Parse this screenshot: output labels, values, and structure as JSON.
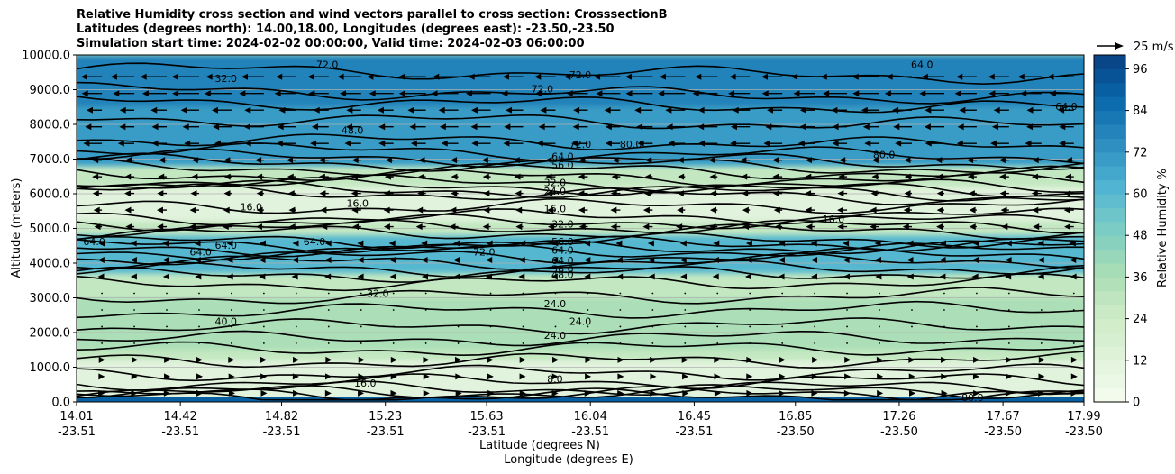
{
  "chart_data": {
    "type": "heatmap",
    "title_lines": [
      "Relative Humidity cross section and wind vectors parallel to cross section: CrosssectionB",
      "Latitudes (degrees north): 14.00,18.00, Longitudes (degrees east): -23.50,-23.50",
      "Simulation start time: 2024-02-02 00:00:00, Valid time: 2024-02-03 06:00:00"
    ],
    "ylabel": "Altitude (meters)",
    "xlabel_lines": [
      "Latitude (degrees N)",
      "Longitude (degrees E)"
    ],
    "y_ticks": [
      "0.0",
      "1000.0",
      "2000.0",
      "3000.0",
      "4000.0",
      "5000.0",
      "6000.0",
      "7000.0",
      "8000.0",
      "9000.0",
      "10000.0"
    ],
    "ylim": [
      0,
      10000
    ],
    "x_ticks": [
      {
        "lat": "14.01",
        "lon": "-23.51"
      },
      {
        "lat": "14.42",
        "lon": "-23.51"
      },
      {
        "lat": "14.82",
        "lon": "-23.51"
      },
      {
        "lat": "15.23",
        "lon": "-23.51"
      },
      {
        "lat": "15.63",
        "lon": "-23.51"
      },
      {
        "lat": "16.04",
        "lon": "-23.51"
      },
      {
        "lat": "16.45",
        "lon": "-23.51"
      },
      {
        "lat": "16.85",
        "lon": "-23.50"
      },
      {
        "lat": "17.26",
        "lon": "-23.50"
      },
      {
        "lat": "17.67",
        "lon": "-23.50"
      },
      {
        "lat": "17.99",
        "lon": "-23.50"
      }
    ],
    "xlim": [
      14.01,
      17.99
    ],
    "colorbar": {
      "label": "Relative Humidity %",
      "ticks": [
        "0",
        "12",
        "24",
        "36",
        "48",
        "60",
        "72",
        "84",
        "96"
      ],
      "range": [
        0,
        100
      ],
      "levels": 25,
      "colormap": "GnBu"
    },
    "quiver_key": "25 m/s",
    "grid": "horizontal",
    "humidity_layers": [
      {
        "altitude_range": [
          8500,
          10000
        ],
        "rh_percent": 78
      },
      {
        "altitude_range": [
          6800,
          8500
        ],
        "rh_percent": 70
      },
      {
        "altitude_range": [
          5200,
          6200
        ],
        "rh_percent": 12
      },
      {
        "altitude_range": [
          3700,
          4800
        ],
        "rh_percent": 60
      },
      {
        "altitude_range": [
          1500,
          3000
        ],
        "rh_percent": 36
      },
      {
        "altitude_range": [
          0,
          1200
        ],
        "rh_percent": 12
      }
    ],
    "contour_labels": [
      {
        "text": "72.0",
        "lat": 15.0,
        "alt": 9700
      },
      {
        "text": "72.0",
        "lat": 15.85,
        "alt": 9000
      },
      {
        "text": "72.0",
        "lat": 16.0,
        "alt": 9400
      },
      {
        "text": "64.0",
        "lat": 17.35,
        "alt": 9700
      },
      {
        "text": "64.0",
        "lat": 17.92,
        "alt": 8500
      },
      {
        "text": "32.0",
        "lat": 14.6,
        "alt": 9300
      },
      {
        "text": "48.0",
        "lat": 15.1,
        "alt": 7800
      },
      {
        "text": "72.0",
        "lat": 16.0,
        "alt": 7400
      },
      {
        "text": "64.0",
        "lat": 15.93,
        "alt": 7050
      },
      {
        "text": "56.0",
        "lat": 15.93,
        "alt": 6800
      },
      {
        "text": "80.0",
        "lat": 16.2,
        "alt": 7400
      },
      {
        "text": "80.0",
        "lat": 17.2,
        "alt": 7100
      },
      {
        "text": "32.0",
        "lat": 15.9,
        "alt": 6300
      },
      {
        "text": "24.0",
        "lat": 15.9,
        "alt": 6050
      },
      {
        "text": "16.0",
        "lat": 15.12,
        "alt": 5700
      },
      {
        "text": "16.0",
        "lat": 14.7,
        "alt": 5600
      },
      {
        "text": "16.0",
        "lat": 15.9,
        "alt": 5550
      },
      {
        "text": "16.0",
        "lat": 17.0,
        "alt": 5250
      },
      {
        "text": "32.0",
        "lat": 15.93,
        "alt": 5100
      },
      {
        "text": "56.0",
        "lat": 15.93,
        "alt": 4600
      },
      {
        "text": "64.0",
        "lat": 15.93,
        "alt": 4350
      },
      {
        "text": "64.0",
        "lat": 15.93,
        "alt": 4050
      },
      {
        "text": "56.0",
        "lat": 15.93,
        "alt": 3800
      },
      {
        "text": "48.0",
        "lat": 15.93,
        "alt": 3650
      },
      {
        "text": "72.0",
        "lat": 15.62,
        "alt": 4300
      },
      {
        "text": "64.0",
        "lat": 14.08,
        "alt": 4600
      },
      {
        "text": "64.0",
        "lat": 14.6,
        "alt": 4500
      },
      {
        "text": "64.0",
        "lat": 14.95,
        "alt": 4600
      },
      {
        "text": "64.0",
        "lat": 14.5,
        "alt": 4300
      },
      {
        "text": "32.0",
        "lat": 15.2,
        "alt": 3100
      },
      {
        "text": "40.0",
        "lat": 14.6,
        "alt": 2300
      },
      {
        "text": "24.0",
        "lat": 15.9,
        "alt": 2800
      },
      {
        "text": "24.0",
        "lat": 16.0,
        "alt": 2300
      },
      {
        "text": "24.0",
        "lat": 15.9,
        "alt": 1900
      },
      {
        "text": "8.0",
        "lat": 15.9,
        "alt": 630
      },
      {
        "text": "16.0",
        "lat": 15.15,
        "alt": 520
      },
      {
        "text": "80.0",
        "lat": 17.55,
        "alt": 100
      }
    ],
    "wind_vectors": [
      {
        "altitude_range": [
          8500,
          10000
        ],
        "u_ms": -22
      },
      {
        "altitude_range": [
          7000,
          8500
        ],
        "u_ms": -16
      },
      {
        "altitude_range": [
          5000,
          7000
        ],
        "u_ms": -8
      },
      {
        "altitude_range": [
          3500,
          5000
        ],
        "u_ms": -4
      },
      {
        "altitude_range": [
          1500,
          3500
        ],
        "u_ms": -1
      },
      {
        "altitude_range": [
          0,
          1500
        ],
        "u_ms": 3
      }
    ]
  }
}
